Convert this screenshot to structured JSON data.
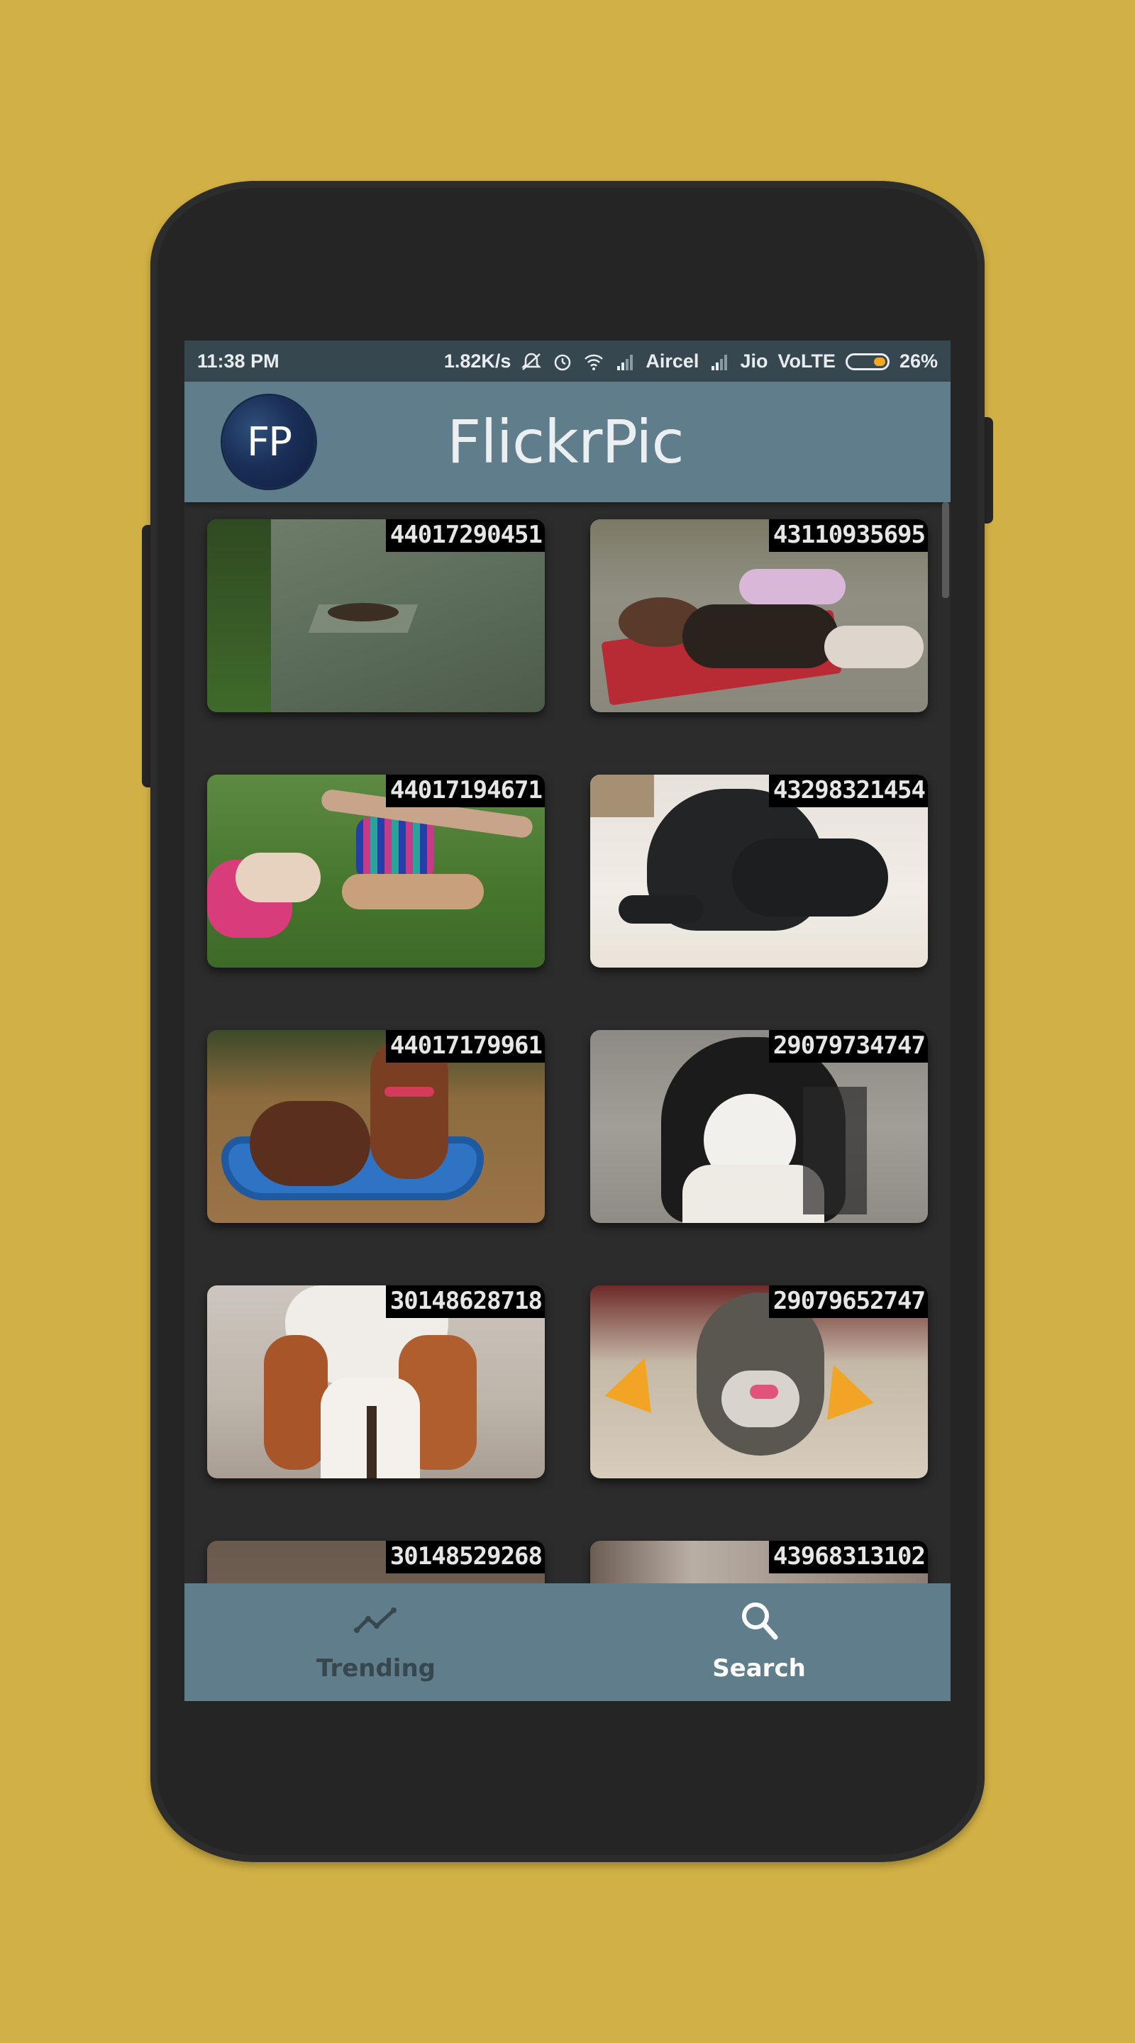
{
  "status_bar": {
    "time": "11:38 PM",
    "speed": "1.82K/s",
    "carrier1": "Aircel",
    "carrier2": "Jio",
    "network": "VoLTE",
    "battery": "26%",
    "battery_level": 0.26
  },
  "app_bar": {
    "avatar_text": "FP",
    "title": "FlickrPic"
  },
  "photos": [
    {
      "id": "44017290451",
      "scene": "dog lying on paved courtyard"
    },
    {
      "id": "43110935695",
      "scene": "girl sleeping with dog on red blanket"
    },
    {
      "id": "44017194671",
      "scene": "dogs in sweaters on grass"
    },
    {
      "id": "43298321454",
      "scene": "black pug lying on floor"
    },
    {
      "id": "44017179961",
      "scene": "dogs in blue paddling pool"
    },
    {
      "id": "29079734747",
      "scene": "black and white french bulldog"
    },
    {
      "id": "30148628718",
      "scene": "boxer bulldog sitting"
    },
    {
      "id": "29079652747",
      "scene": "schnauzer with party stickers"
    },
    {
      "id": "30148529268",
      "scene": "partially visible photo"
    },
    {
      "id": "43968313102",
      "scene": "partially visible photo"
    }
  ],
  "bottom_nav": {
    "trending_label": "Trending",
    "search_label": "Search",
    "active": "search",
    "trending_icon": "trending-icon",
    "search_icon": "search-icon"
  },
  "colors": {
    "background": "#d1b045",
    "phone_body": "#252525",
    "status_bar": "#37474f",
    "app_bar": "#607d8b",
    "grid_background": "#2c2c2c"
  }
}
